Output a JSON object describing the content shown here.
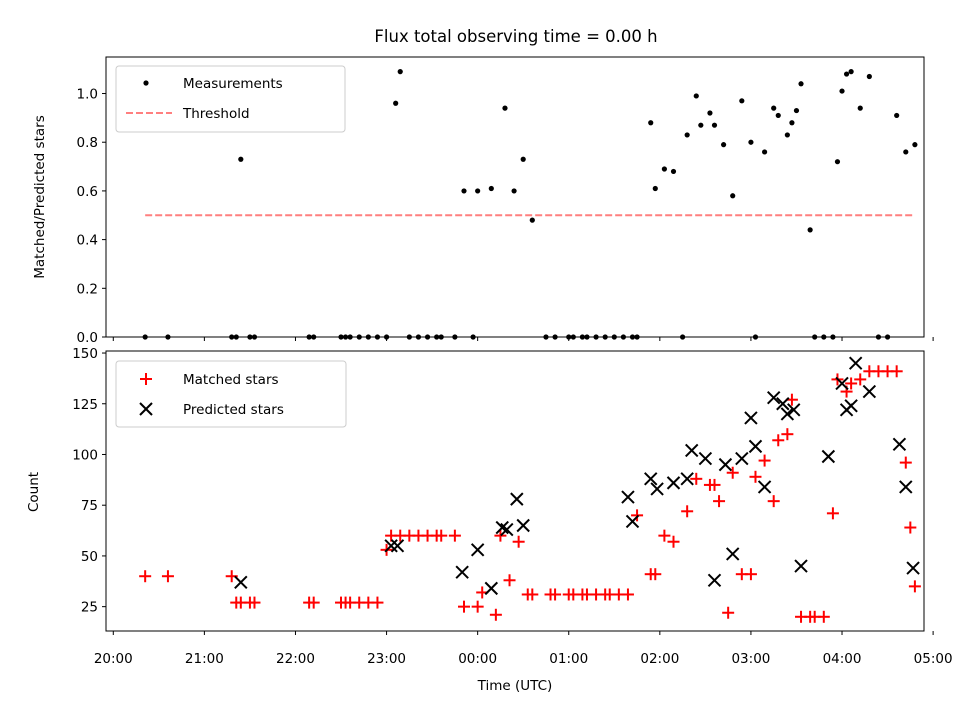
{
  "title": "Flux total observing time = 0.00 h",
  "chart_data": [
    {
      "type": "scatter",
      "ylabel": "Matched/Predicted stars",
      "xlim": [
        -0.08,
        8.9
      ],
      "ylim": [
        0.0,
        1.15
      ],
      "yticks": [
        0.0,
        0.2,
        0.4,
        0.6,
        0.8,
        1.0
      ],
      "legend_position": "top-left",
      "series": [
        {
          "name": "Measurements",
          "marker": "dot",
          "color": "#000000",
          "x": [
            0.35,
            0.6,
            1.3,
            1.35,
            1.4,
            1.5,
            1.55,
            2.15,
            2.2,
            2.5,
            2.55,
            2.6,
            2.7,
            2.8,
            2.9,
            3.0,
            3.1,
            3.15,
            3.25,
            3.35,
            3.45,
            3.55,
            3.6,
            3.75,
            3.85,
            3.95,
            4.0,
            4.15,
            4.3,
            4.4,
            4.5,
            4.6,
            4.75,
            4.85,
            5.0,
            5.05,
            5.15,
            5.2,
            5.3,
            5.4,
            5.5,
            5.6,
            5.7,
            5.75,
            5.9,
            5.95,
            6.05,
            6.15,
            6.25,
            6.3,
            6.4,
            6.45,
            6.55,
            6.6,
            6.7,
            6.8,
            6.9,
            7.0,
            7.05,
            7.15,
            7.25,
            7.3,
            7.4,
            7.45,
            7.5,
            7.55,
            7.65,
            7.7,
            7.8,
            7.9,
            7.95,
            8.0,
            8.05,
            8.1,
            8.2,
            8.3,
            8.4,
            8.5,
            8.6,
            8.7,
            8.8
          ],
          "values": [
            0,
            0,
            0,
            0,
            0.73,
            0,
            0,
            0,
            0,
            0,
            0,
            0,
            0,
            0,
            0,
            0,
            0.96,
            1.09,
            0,
            0,
            0,
            0,
            0,
            0,
            0.6,
            0,
            0.6,
            0.61,
            0.94,
            0.6,
            0.73,
            0.48,
            0,
            0,
            0,
            0,
            0,
            0,
            0,
            0,
            0,
            0,
            0,
            0,
            0.88,
            0.61,
            0.69,
            0.68,
            0,
            0.83,
            0.99,
            0.87,
            0.92,
            0.87,
            0.79,
            0.58,
            0.97,
            0.8,
            0,
            0.76,
            0.94,
            0.91,
            0.83,
            0.88,
            0.93,
            1.04,
            0.44,
            0,
            0,
            0,
            0.72,
            1.01,
            1.08,
            1.09,
            0.94,
            1.07,
            0,
            0,
            0.91,
            0.76,
            0.79
          ]
        },
        {
          "name": "Threshold",
          "marker": "dashed-line",
          "color": "#ff7f7f",
          "x": [
            0.35,
            8.8
          ],
          "values": [
            0.5,
            0.5
          ]
        }
      ]
    },
    {
      "type": "scatter",
      "xlabel": "Time (UTC)",
      "ylabel": "Count",
      "xlim": [
        -0.08,
        8.9
      ],
      "ylim": [
        13,
        151
      ],
      "yticks": [
        25,
        50,
        75,
        100,
        125,
        150
      ],
      "xtick_labels": [
        "20:00",
        "21:00",
        "22:00",
        "23:00",
        "00:00",
        "01:00",
        "02:00",
        "03:00",
        "04:00",
        "05:00"
      ],
      "legend_position": "top-left",
      "series": [
        {
          "name": "Matched stars",
          "marker": "plus",
          "color": "#ff0000",
          "x": [
            0.35,
            0.6,
            1.3,
            1.35,
            1.4,
            1.5,
            1.55,
            2.15,
            2.2,
            2.5,
            2.55,
            2.6,
            2.7,
            2.8,
            2.9,
            3.0,
            3.05,
            3.15,
            3.25,
            3.35,
            3.45,
            3.55,
            3.6,
            3.75,
            3.85,
            4.0,
            4.05,
            4.2,
            4.25,
            4.35,
            4.45,
            4.55,
            4.6,
            4.8,
            4.85,
            5.0,
            5.05,
            5.15,
            5.2,
            5.3,
            5.4,
            5.45,
            5.55,
            5.65,
            5.75,
            5.9,
            5.95,
            6.05,
            6.15,
            6.3,
            6.4,
            6.55,
            6.6,
            6.65,
            6.75,
            6.8,
            6.9,
            7.0,
            7.05,
            7.15,
            7.25,
            7.3,
            7.4,
            7.45,
            7.55,
            7.65,
            7.7,
            7.8,
            7.9,
            7.95,
            8.05,
            8.1,
            8.2,
            8.3,
            8.4,
            8.5,
            8.6,
            8.7,
            8.75,
            8.8
          ],
          "values": [
            40,
            40,
            40,
            27,
            27,
            27,
            27,
            27,
            27,
            27,
            27,
            27,
            27,
            27,
            27,
            53,
            60,
            60,
            60,
            60,
            60,
            60,
            60,
            60,
            25,
            25,
            32,
            21,
            60,
            38,
            57,
            31,
            31,
            31,
            31,
            31,
            31,
            31,
            31,
            31,
            31,
            31,
            31,
            31,
            70,
            41,
            41,
            60,
            57,
            72,
            88,
            85,
            85,
            77,
            22,
            91,
            41,
            41,
            89,
            97,
            77,
            107,
            110,
            127,
            20,
            20,
            20,
            20,
            71,
            137,
            131,
            135,
            137,
            141,
            141,
            141,
            141,
            96,
            64,
            35
          ]
        },
        {
          "name": "Predicted stars",
          "marker": "x",
          "color": "#000000",
          "x": [
            1.4,
            3.05,
            3.12,
            3.83,
            4.0,
            4.15,
            4.27,
            4.32,
            4.43,
            4.5,
            5.65,
            5.7,
            5.9,
            5.97,
            6.15,
            6.3,
            6.35,
            6.5,
            6.6,
            6.72,
            6.8,
            6.9,
            7.0,
            7.05,
            7.15,
            7.25,
            7.35,
            7.4,
            7.47,
            7.55,
            7.85,
            8.0,
            8.05,
            8.1,
            8.15,
            8.3,
            8.63,
            8.7,
            8.78
          ],
          "values": [
            37,
            55,
            55,
            42,
            53,
            34,
            64,
            63,
            78,
            65,
            79,
            67,
            88,
            83,
            86,
            88,
            102,
            98,
            38,
            95,
            51,
            98,
            118,
            104,
            84,
            128,
            125,
            120,
            122,
            45,
            99,
            135,
            122,
            124,
            145,
            131,
            105,
            84,
            44
          ]
        }
      ]
    }
  ]
}
